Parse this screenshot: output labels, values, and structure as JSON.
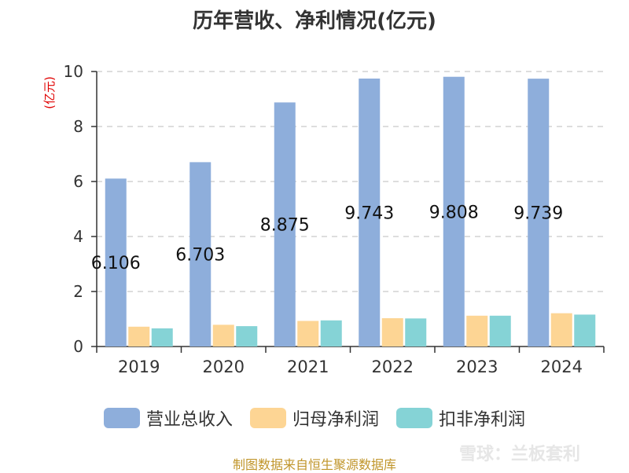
{
  "chart_data": {
    "type": "bar",
    "title": "历年营收、净利情况(亿元)",
    "ylabel": "(亿元)",
    "ylim": [
      0,
      10
    ],
    "yticks": [
      0,
      2,
      4,
      6,
      8,
      10
    ],
    "categories": [
      "2019",
      "2020",
      "2021",
      "2022",
      "2023",
      "2024"
    ],
    "series": [
      {
        "name": "营业总收入",
        "color": "#8eaedb",
        "values": [
          6.106,
          6.703,
          8.875,
          9.743,
          9.808,
          9.739
        ],
        "labels": [
          "6.106",
          "6.703",
          "8.875",
          "9.743",
          "9.808",
          "9.739"
        ]
      },
      {
        "name": "归母净利润",
        "color": "#fdd594",
        "values": [
          0.72,
          0.79,
          0.93,
          1.03,
          1.12,
          1.21
        ]
      },
      {
        "name": "扣非净利润",
        "color": "#85d3d6",
        "values": [
          0.66,
          0.74,
          0.95,
          1.02,
          1.12,
          1.16
        ]
      }
    ],
    "grid": true,
    "legend_position": "bottom"
  },
  "footer": {
    "source": "制图数据来自恒生聚源数据库"
  },
  "watermark": {
    "text": "雪球：兰板套利"
  }
}
